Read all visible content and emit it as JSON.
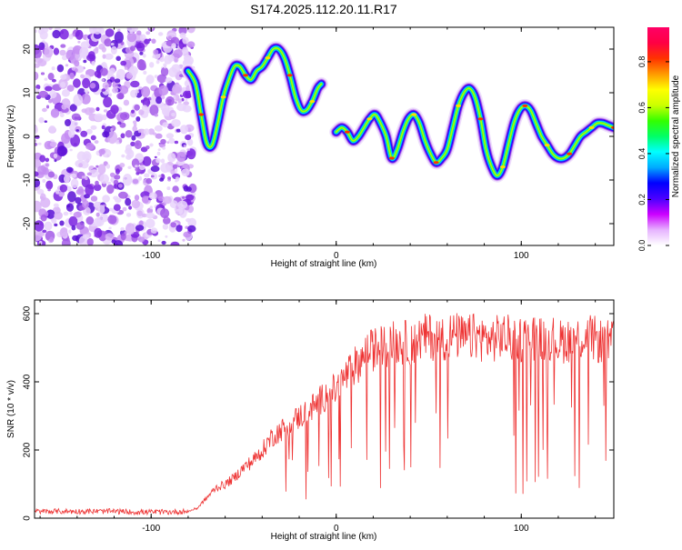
{
  "title": "S174.2025.112.20.11.R17",
  "chart_data": [
    {
      "type": "heatmap",
      "title": "S174.2025.112.20.11.R17",
      "xlabel": "Height of straight line (km)",
      "ylabel": "Frequency (Hz)",
      "xlim": [
        -163,
        150
      ],
      "ylim": [
        -25,
        25
      ],
      "xticks": [
        -100,
        0,
        100
      ],
      "yticks": [
        -20,
        -10,
        0,
        10,
        20
      ],
      "noise_region_x": [
        -163,
        -80
      ],
      "ridge": {
        "x": [
          -80,
          -76,
          -73,
          -70,
          -67,
          -64,
          -61,
          -58,
          -55,
          -52,
          -49,
          -46,
          -43,
          -40,
          -37,
          -34,
          -31,
          -28,
          -25,
          -22,
          -19,
          -16,
          -13,
          -10,
          -8,
          -6,
          -4,
          -2,
          0,
          3,
          6,
          9,
          12,
          15,
          18,
          21,
          24,
          27,
          30,
          33,
          36,
          39,
          42,
          45,
          48,
          51,
          54,
          57,
          60,
          63,
          66,
          69,
          72,
          75,
          78,
          81,
          84,
          87,
          90,
          93,
          96,
          99,
          102,
          105,
          108,
          111,
          114,
          117,
          120,
          123,
          126,
          129,
          132,
          135,
          138,
          141,
          144,
          147,
          150
        ],
        "y": [
          15,
          12,
          5,
          -1.5,
          -2,
          3,
          9,
          13,
          16,
          16,
          14,
          13,
          15,
          16,
          18,
          20,
          20,
          18,
          14,
          9,
          6,
          6,
          8,
          11,
          12,
          null,
          null,
          null,
          1,
          2,
          1,
          -1,
          0,
          2,
          4,
          5,
          3,
          0,
          -5,
          -3,
          1,
          4,
          5,
          3,
          -1,
          -4,
          -6,
          -5,
          -3,
          2,
          7,
          10,
          11,
          9,
          4,
          -3,
          -7,
          -9,
          -7,
          -2,
          3,
          6,
          7,
          6,
          3,
          0,
          -2,
          -4,
          -5,
          -5,
          -4,
          -2,
          0,
          1,
          2,
          3,
          3,
          2.5,
          2
        ]
      },
      "colorbar": {
        "label": "Normalized spectral amplitude",
        "range": [
          0,
          0.95
        ],
        "ticks": [
          0.0,
          0.2,
          0.4,
          0.6,
          0.8
        ],
        "tick_labels": [
          "0.0",
          "0.2",
          "0.4",
          "0.6",
          "0.8"
        ],
        "colors": [
          "#ffffff",
          "#e6b3ff",
          "#cc00ff",
          "#4b00ff",
          "#0000ff",
          "#00aaff",
          "#00ffff",
          "#00ff66",
          "#33ff00",
          "#ccff00",
          "#ffff00",
          "#ff9900",
          "#ff3300",
          "#ff0044",
          "#ff0066"
        ]
      }
    },
    {
      "type": "line",
      "xlabel": "Height of straight line (km)",
      "ylabel": "SNR (10 * v/v)",
      "xlim": [
        -163,
        150
      ],
      "ylim": [
        0,
        640
      ],
      "xticks": [
        -100,
        0,
        100
      ],
      "yticks": [
        0,
        200,
        400,
        600
      ],
      "series": [
        {
          "color": "#ee3333",
          "x": [
            -163,
            -150,
            -140,
            -130,
            -120,
            -110,
            -100,
            -90,
            -80,
            -75,
            -70,
            -65,
            -60,
            -55,
            -50,
            -45,
            -40,
            -35,
            -30,
            -25,
            -20,
            -15,
            -10,
            -5,
            0,
            5,
            10,
            15,
            20,
            25,
            30,
            35,
            40,
            45,
            50,
            55,
            60,
            65,
            70,
            75,
            80,
            85,
            90,
            95,
            100,
            105,
            110,
            115,
            120,
            125,
            130,
            135,
            140,
            145,
            150
          ],
          "y": [
            20,
            20,
            20,
            20,
            20,
            18,
            18,
            18,
            20,
            30,
            60,
            90,
            100,
            120,
            150,
            170,
            200,
            240,
            260,
            280,
            300,
            320,
            340,
            370,
            380,
            420,
            450,
            480,
            500,
            510,
            520,
            520,
            520,
            530,
            540,
            530,
            540,
            540,
            530,
            540,
            530,
            530,
            540,
            530,
            530,
            540,
            530,
            540,
            520,
            530,
            530,
            540,
            530,
            520,
            520
          ]
        }
      ]
    }
  ]
}
